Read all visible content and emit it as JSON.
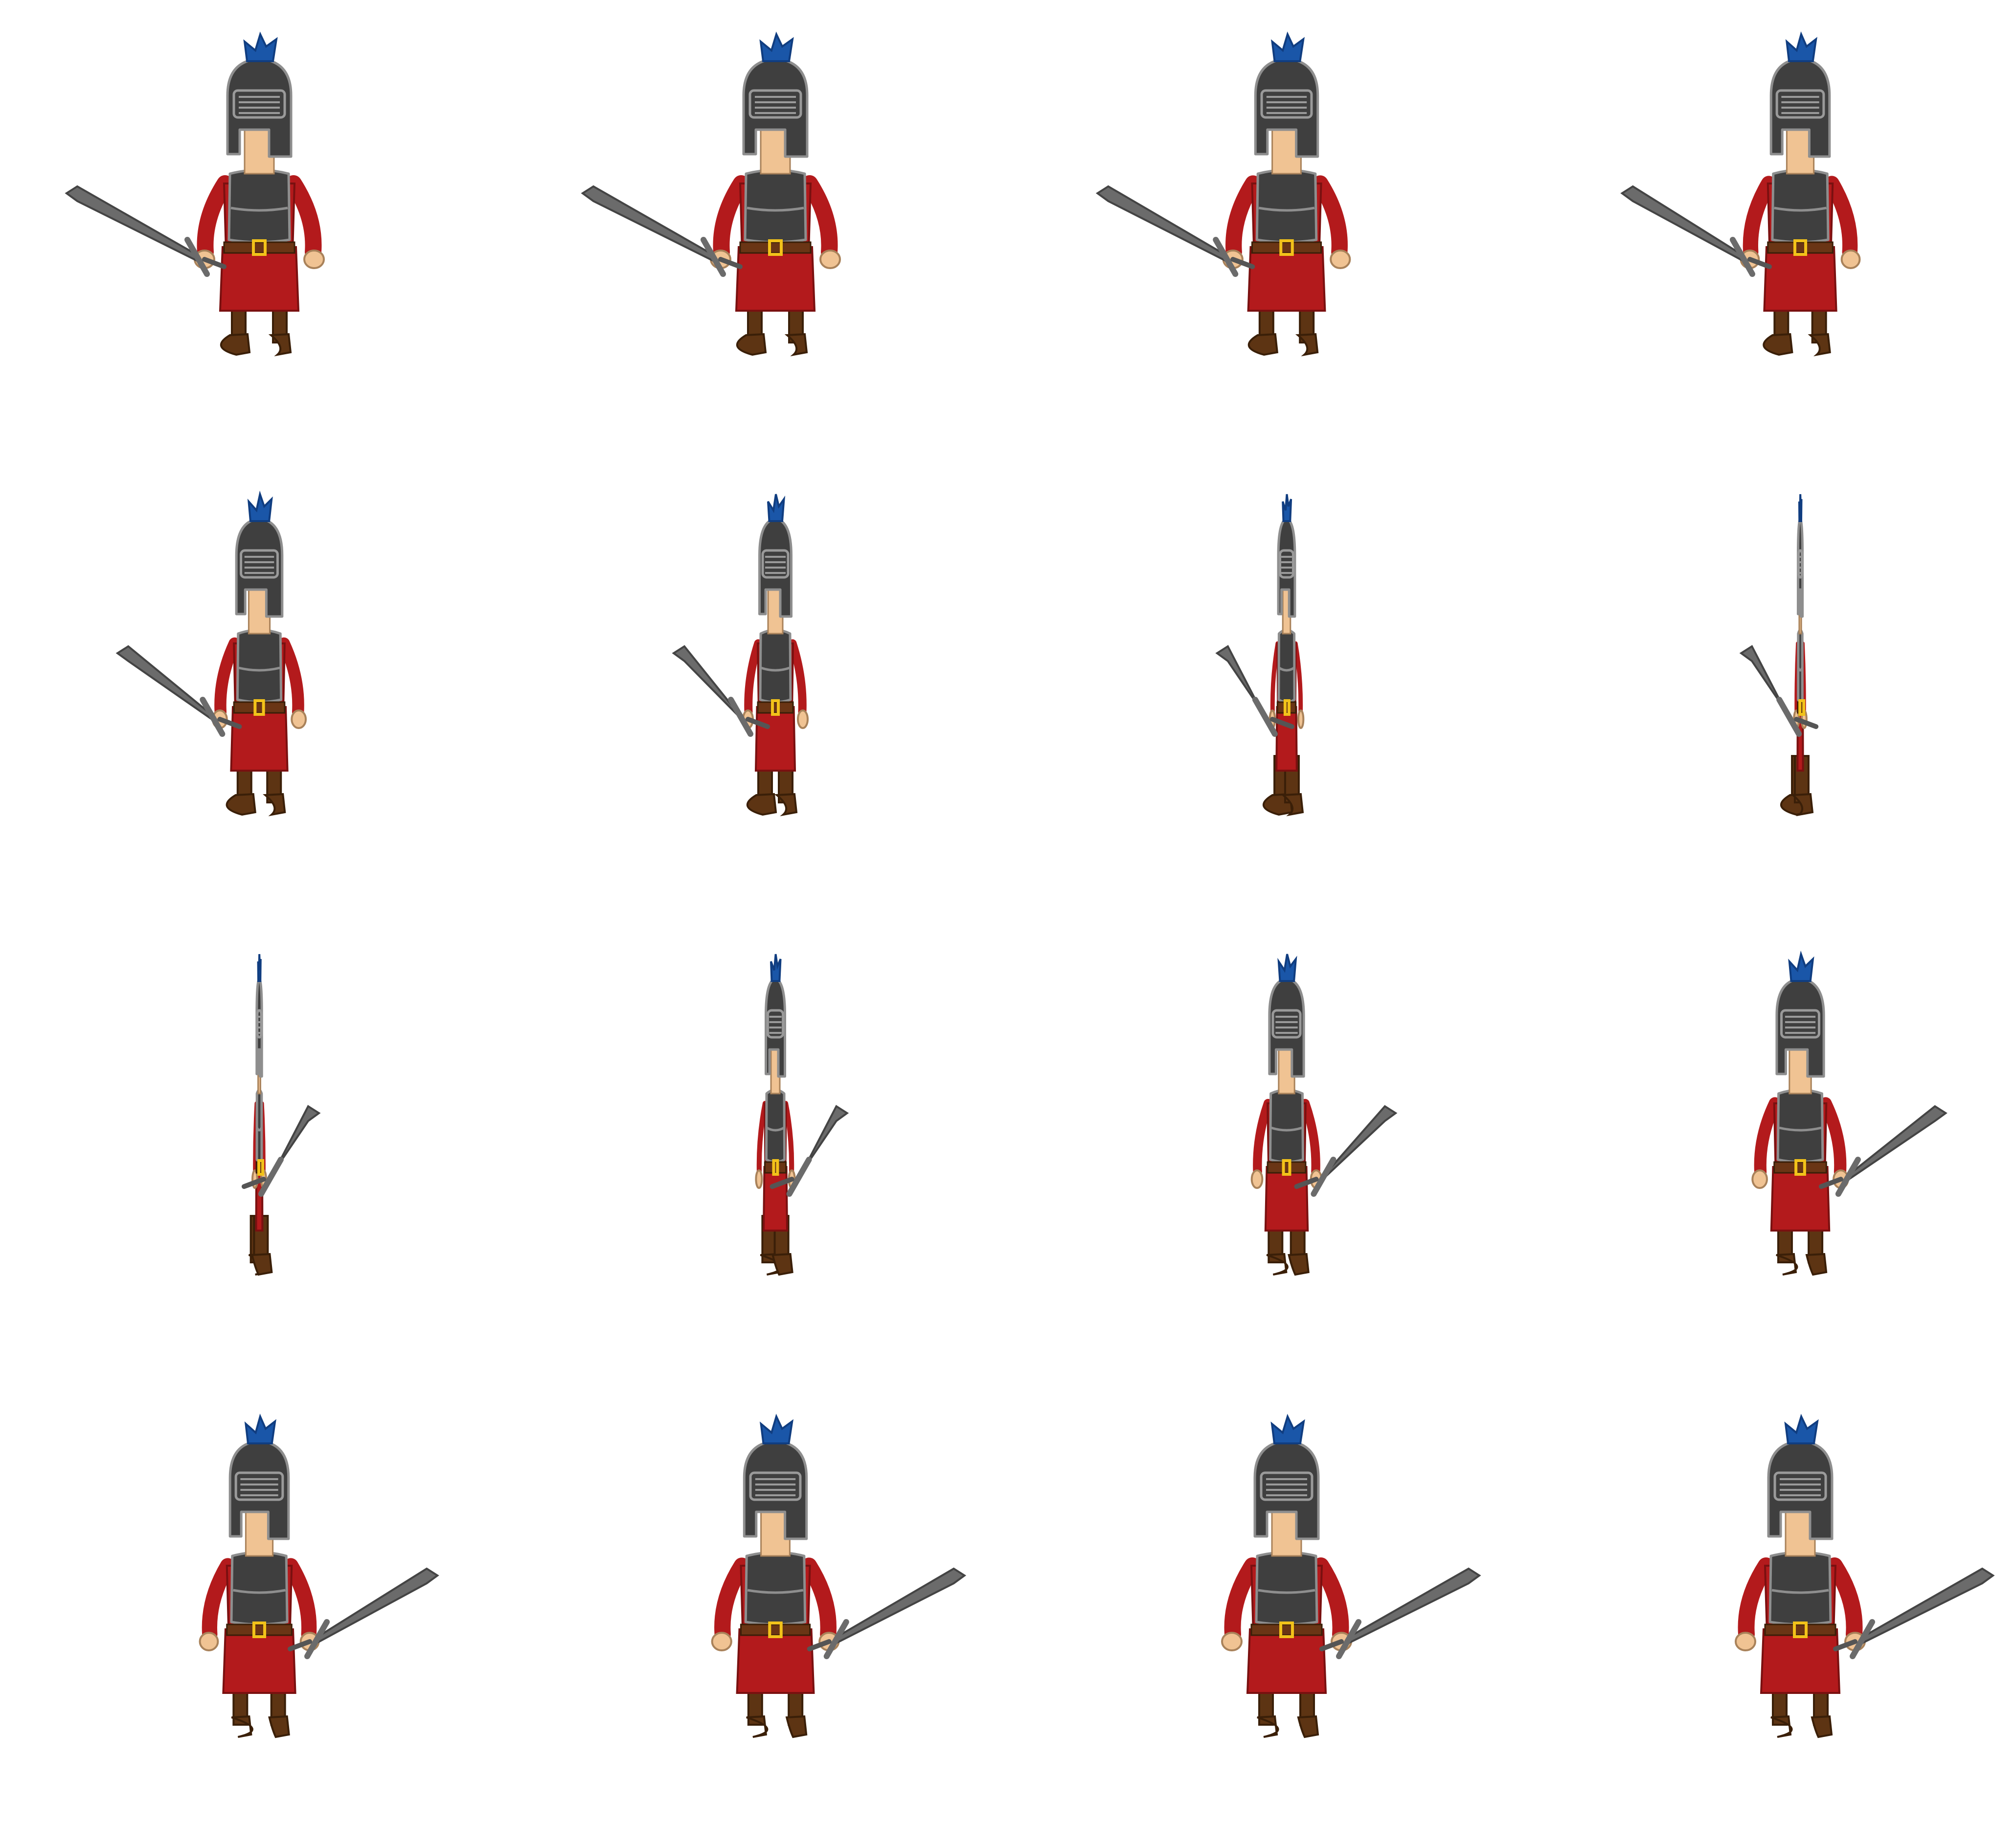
{
  "sprite_sheet": {
    "subject": "knight",
    "rows": 4,
    "columns": 4,
    "frame_count": 16,
    "colors": {
      "background": "#ffffff",
      "outline": "#8e8e8e",
      "helmet": "#3f3f3f",
      "helmet_slits": "#9a9a9a",
      "plume": "#1a56a8",
      "plume_dark": "#103d80",
      "skin": "#f0c393",
      "tunic": "#b31a1c",
      "armor": "#3f3f3f",
      "belt": "#6a3515",
      "buckle": "#f2c21a",
      "boots": "#5d3413",
      "blade": "#6b6b6b"
    },
    "frames": [
      {
        "index": 1,
        "row": 1,
        "col": 1,
        "turn": 1.0,
        "sword_side": "left"
      },
      {
        "index": 2,
        "row": 1,
        "col": 2,
        "turn": 1.0,
        "sword_side": "left"
      },
      {
        "index": 3,
        "row": 1,
        "col": 3,
        "turn": 0.98,
        "sword_side": "left"
      },
      {
        "index": 4,
        "row": 1,
        "col": 4,
        "turn": 0.92,
        "sword_side": "left"
      },
      {
        "index": 5,
        "row": 2,
        "col": 1,
        "turn": 0.72,
        "sword_side": "left"
      },
      {
        "index": 6,
        "row": 2,
        "col": 2,
        "turn": 0.5,
        "sword_side": "left"
      },
      {
        "index": 7,
        "row": 2,
        "col": 3,
        "turn": 0.26,
        "sword_side": "left"
      },
      {
        "index": 8,
        "row": 2,
        "col": 4,
        "turn": 0.07,
        "sword_side": "left"
      },
      {
        "index": 9,
        "row": 3,
        "col": 1,
        "turn": 0.08,
        "sword_side": "right"
      },
      {
        "index": 10,
        "row": 3,
        "col": 2,
        "turn": 0.3,
        "sword_side": "right"
      },
      {
        "index": 11,
        "row": 3,
        "col": 3,
        "turn": 0.54,
        "sword_side": "right"
      },
      {
        "index": 12,
        "row": 3,
        "col": 4,
        "turn": 0.74,
        "sword_side": "right"
      },
      {
        "index": 13,
        "row": 4,
        "col": 1,
        "turn": 0.92,
        "sword_side": "right"
      },
      {
        "index": 14,
        "row": 4,
        "col": 2,
        "turn": 0.98,
        "sword_side": "right"
      },
      {
        "index": 15,
        "row": 4,
        "col": 3,
        "turn": 1.0,
        "sword_side": "right"
      },
      {
        "index": 16,
        "row": 4,
        "col": 4,
        "turn": 1.0,
        "sword_side": "right"
      }
    ]
  }
}
